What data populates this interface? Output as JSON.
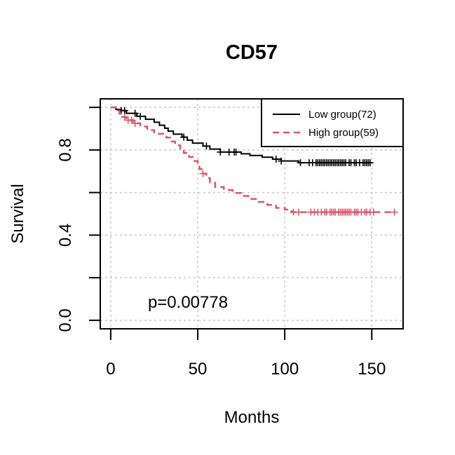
{
  "chart_data": {
    "type": "line",
    "title": "CD57",
    "xlabel": "Months",
    "ylabel": "Survival",
    "xlim": [
      -6,
      168
    ],
    "ylim": [
      -0.04,
      1.04
    ],
    "xticks": [
      0,
      50,
      100,
      150
    ],
    "yticks": [
      0.0,
      0.2,
      0.4,
      0.6,
      0.8,
      1.0
    ],
    "ytick_labels": [
      "0.0",
      "",
      "0.4",
      "",
      "0.8",
      ""
    ],
    "grid": true,
    "legend_position": "top-right",
    "annotation": "p=0.00778",
    "series": [
      {
        "name": "Low group(72)",
        "color": "#000000",
        "dash": "solid",
        "steps": [
          [
            0,
            1.0
          ],
          [
            3,
            0.99
          ],
          [
            6,
            0.985
          ],
          [
            9,
            0.972
          ],
          [
            15,
            0.958
          ],
          [
            20,
            0.944
          ],
          [
            25,
            0.93
          ],
          [
            28,
            0.916
          ],
          [
            31,
            0.902
          ],
          [
            33,
            0.888
          ],
          [
            36,
            0.874
          ],
          [
            41,
            0.86
          ],
          [
            44,
            0.846
          ],
          [
            47,
            0.832
          ],
          [
            53,
            0.818
          ],
          [
            57,
            0.804
          ],
          [
            63,
            0.79
          ],
          [
            75,
            0.782
          ],
          [
            80,
            0.774
          ],
          [
            87,
            0.766
          ],
          [
            93,
            0.757
          ],
          [
            98,
            0.748
          ],
          [
            108,
            0.74
          ],
          [
            150,
            0.74
          ]
        ],
        "censor": [
          6,
          8,
          14,
          17,
          42,
          55,
          63,
          68,
          71,
          72,
          95,
          98,
          109,
          114,
          116,
          118,
          119,
          120,
          121,
          122,
          123,
          124,
          125,
          126,
          127,
          128,
          129,
          130,
          131,
          132,
          133,
          134,
          135,
          137,
          138,
          140,
          141,
          143,
          145,
          146,
          147,
          148,
          149
        ]
      },
      {
        "name": "High group(59)",
        "color": "#DF536B",
        "dash": "dashed",
        "steps": [
          [
            0,
            1.0
          ],
          [
            3,
            0.985
          ],
          [
            5,
            0.97
          ],
          [
            7,
            0.955
          ],
          [
            9,
            0.94
          ],
          [
            13,
            0.925
          ],
          [
            17,
            0.91
          ],
          [
            21,
            0.893
          ],
          [
            25,
            0.876
          ],
          [
            32,
            0.858
          ],
          [
            35,
            0.84
          ],
          [
            37,
            0.822
          ],
          [
            40,
            0.804
          ],
          [
            42,
            0.786
          ],
          [
            45,
            0.767
          ],
          [
            48,
            0.748
          ],
          [
            50,
            0.729
          ],
          [
            51,
            0.71
          ],
          [
            53,
            0.689
          ],
          [
            55,
            0.668
          ],
          [
            57,
            0.647
          ],
          [
            60,
            0.626
          ],
          [
            65,
            0.612
          ],
          [
            70,
            0.598
          ],
          [
            75,
            0.584
          ],
          [
            80,
            0.57
          ],
          [
            85,
            0.556
          ],
          [
            90,
            0.542
          ],
          [
            95,
            0.528
          ],
          [
            100,
            0.52
          ],
          [
            104,
            0.508
          ],
          [
            163,
            0.508
          ]
        ],
        "censor": [
          8,
          10,
          12,
          14,
          53,
          105,
          108,
          115,
          117,
          119,
          121,
          123,
          124,
          126,
          127,
          128,
          129,
          131,
          132,
          133,
          134,
          135,
          136,
          137,
          138,
          140,
          141,
          142,
          144,
          146,
          147,
          149,
          151,
          163
        ]
      }
    ]
  }
}
